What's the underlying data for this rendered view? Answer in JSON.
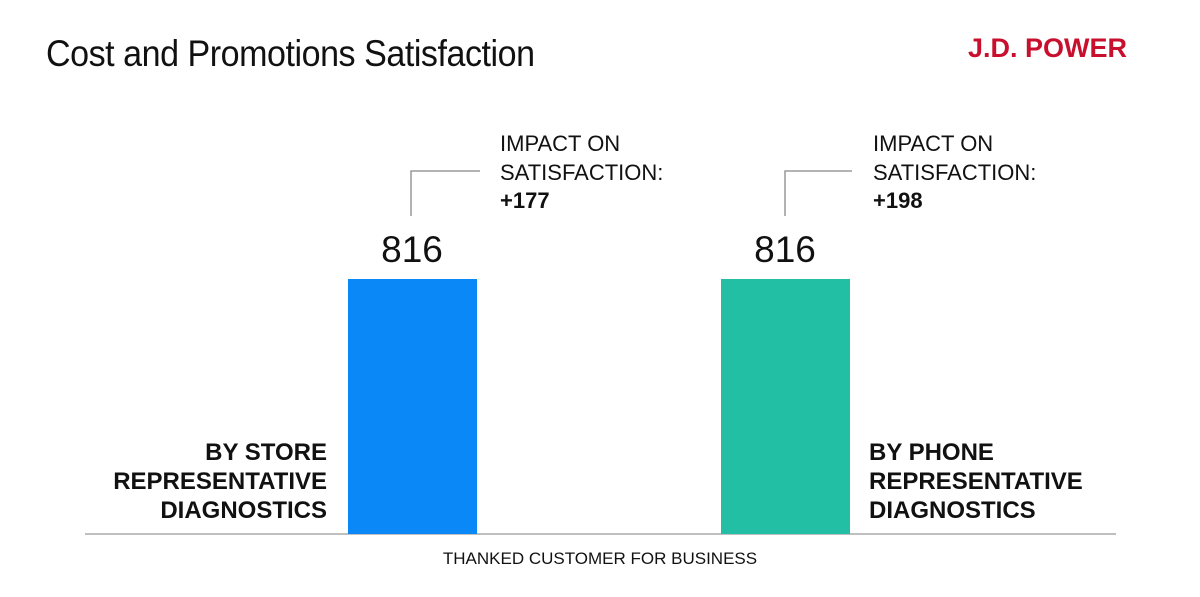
{
  "header": {
    "title": "Cost and Promotions Satisfaction",
    "logo_text": "J.D. POWER"
  },
  "colors": {
    "logo": "#c8102e",
    "store_bar": "#0a88f7",
    "phone_bar": "#22bfa5",
    "axis_line": "#aaaaaa",
    "callout_line": "#888888"
  },
  "chart_data": {
    "type": "bar",
    "title": "Cost and Promotions Satisfaction",
    "xlabel": "THANKED CUSTOMER FOR BUSINESS",
    "ylabel": "",
    "categories": [
      "BY STORE REPRESENTATIVE DIAGNOSTICS",
      "BY PHONE REPRESENTATIVE DIAGNOSTICS"
    ],
    "category_lines": [
      [
        "BY STORE",
        "REPRESENTATIVE",
        "DIAGNOSTICS"
      ],
      [
        "BY PHONE",
        "REPRESENTATIVE",
        "DIAGNOSTICS"
      ]
    ],
    "values": [
      816,
      816
    ],
    "value_labels": [
      "816",
      "816"
    ],
    "annotations": [
      {
        "line1": "IMPACT ON",
        "line2": "SATISFACTION:",
        "value": "+177"
      },
      {
        "line1": "IMPACT ON",
        "line2": "SATISFACTION:",
        "value": "+198"
      }
    ],
    "grid": false,
    "legend": "none"
  }
}
